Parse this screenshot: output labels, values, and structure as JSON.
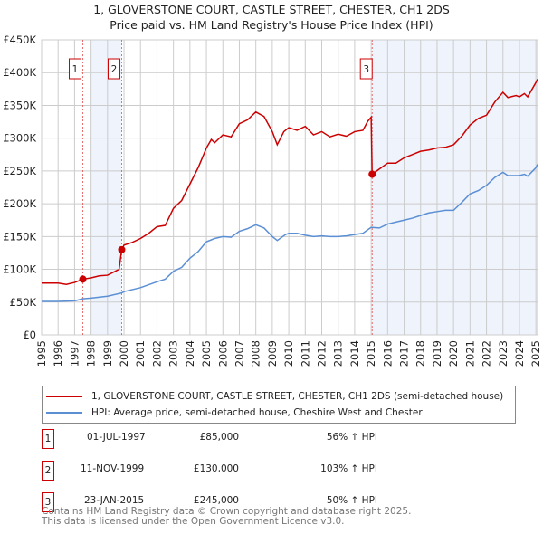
{
  "chart_data": {
    "type": "line",
    "title": "1, GLOVERSTONE COURT, CASTLE STREET, CHESTER, CH1 2DS",
    "subtitle": "Price paid vs. HM Land Registry's House Price Index (HPI)",
    "xlim": [
      1995,
      2025.1
    ],
    "ylim": [
      0,
      450000
    ],
    "yticks": [
      0,
      50000,
      100000,
      150000,
      200000,
      250000,
      300000,
      350000,
      400000,
      450000
    ],
    "ytick_labels": [
      "£0",
      "£50K",
      "£100K",
      "£150K",
      "£200K",
      "£250K",
      "£300K",
      "£350K",
      "£400K",
      "£450K"
    ],
    "xticks": [
      1995,
      1996,
      1997,
      1998,
      1999,
      2000,
      2001,
      2002,
      2003,
      2004,
      2005,
      2006,
      2007,
      2008,
      2009,
      2010,
      2011,
      2012,
      2013,
      2014,
      2015,
      2016,
      2017,
      2018,
      2019,
      2020,
      2021,
      2022,
      2023,
      2024,
      2025
    ],
    "grid": true,
    "shaded_ranges": [
      [
        1998.0,
        1999.86
      ],
      [
        2015.06,
        2025.1
      ]
    ],
    "series": [
      {
        "name": "1, GLOVERSTONE COURT, CASTLE STREET, CHESTER, CH1 2DS (semi-detached house)",
        "color": "#cc0000",
        "x": [
          1995,
          1996,
          1996.5,
          1997,
          1997.5,
          1998,
          1998.5,
          1999,
          1999.7,
          1999.86,
          2000,
          2000.5,
          2001,
          2001.5,
          2002,
          2002.5,
          2003,
          2003.5,
          2004,
          2004.5,
          2005,
          2005.3,
          2005.5,
          2006,
          2006.5,
          2007,
          2007.5,
          2008,
          2008.5,
          2009,
          2009.3,
          2009.7,
          2010,
          2010.5,
          2011,
          2011.5,
          2012,
          2012.5,
          2013,
          2013.5,
          2014,
          2014.5,
          2014.8,
          2015.0,
          2015.06,
          2015.5,
          2016,
          2016.5,
          2017,
          2017.5,
          2018,
          2018.5,
          2019,
          2019.5,
          2020,
          2020.5,
          2021,
          2021.5,
          2022,
          2022.5,
          2023,
          2023.3,
          2023.8,
          2024,
          2024.3,
          2024.5,
          2025,
          2025.1
        ],
        "y": [
          79,
          79,
          77,
          80,
          85,
          87,
          90,
          91,
          100,
          130,
          137,
          141,
          147,
          155,
          165,
          167,
          193,
          205,
          230,
          255,
          285,
          298,
          293,
          305,
          302,
          322,
          328,
          340,
          333,
          310,
          290,
          310,
          316,
          312,
          318,
          305,
          310,
          302,
          306,
          303,
          310,
          312,
          326,
          332,
          245,
          253,
          262,
          262,
          270,
          275,
          280,
          282,
          285,
          286,
          290,
          303,
          320,
          330,
          335,
          355,
          370,
          362,
          365,
          363,
          368,
          363,
          385,
          390
        ]
      },
      {
        "name": "HPI: Average price, semi-detached house, Cheshire West and Chester",
        "color": "#5b8fd4",
        "x": [
          1995,
          1996,
          1997,
          1997.5,
          1998,
          1999,
          1999.86,
          2000,
          2001,
          2002,
          2002.5,
          2003,
          2003.5,
          2004,
          2004.5,
          2005,
          2005.5,
          2006,
          2006.5,
          2007,
          2007.5,
          2008,
          2008.5,
          2009,
          2009.3,
          2009.8,
          2010,
          2010.5,
          2011,
          2011.5,
          2012,
          2012.5,
          2013,
          2013.5,
          2014,
          2014.5,
          2015,
          2015.5,
          2016,
          2016.5,
          2017,
          2017.5,
          2018,
          2018.5,
          2019,
          2019.5,
          2020,
          2020.5,
          2021,
          2021.5,
          2022,
          2022.5,
          2023,
          2023.3,
          2024,
          2024.3,
          2024.5,
          2025,
          2025.1
        ],
        "y": [
          51,
          51,
          52,
          55,
          56,
          59,
          64,
          66,
          72,
          81,
          85,
          97,
          103,
          117,
          127,
          142,
          147,
          150,
          149,
          158,
          162,
          168,
          163,
          150,
          144,
          153,
          155,
          155,
          152,
          150,
          151,
          150,
          150,
          151,
          153,
          155,
          164,
          163,
          169,
          172,
          175,
          178,
          182,
          186,
          188,
          190,
          190,
          202,
          215,
          220,
          228,
          240,
          248,
          243,
          243,
          245,
          242,
          255,
          260
        ]
      }
    ],
    "y_units": "thousands GBP",
    "sales": [
      {
        "label": "1",
        "date": "01-JUL-1997",
        "x": 1997.5,
        "price": "£85,000",
        "value": 85,
        "hpi": "56% ↑ HPI"
      },
      {
        "label": "2",
        "date": "11-NOV-1999",
        "x": 1999.86,
        "price": "£130,000",
        "value": 130,
        "hpi": "103% ↑ HPI"
      },
      {
        "label": "3",
        "date": "23-JAN-2015",
        "x": 2015.06,
        "price": "£245,000",
        "value": 245,
        "hpi": "50% ↑ HPI"
      }
    ]
  },
  "legend": {
    "red": "1, GLOVERSTONE COURT, CASTLE STREET, CHESTER, CH1 2DS (semi-detached house)",
    "blue": "HPI: Average price, semi-detached house, Cheshire West and Chester"
  },
  "footer": {
    "line1": "Contains HM Land Registry data © Crown copyright and database right 2025.",
    "line2": "This data is licensed under the Open Government Licence v3.0."
  }
}
